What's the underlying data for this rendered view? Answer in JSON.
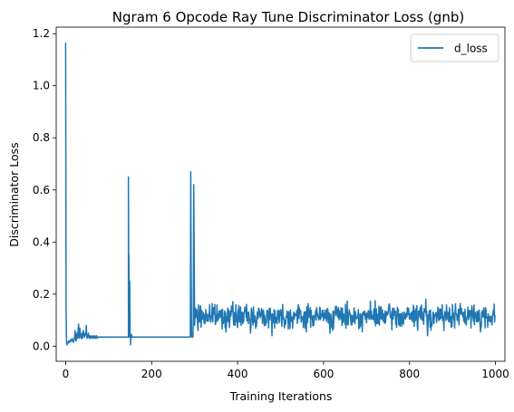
{
  "chart_data": {
    "type": "line",
    "title": "Ngram 6 Opcode Ray Tune Discriminator Loss (gnb)",
    "xlabel": "Training Iterations",
    "ylabel": "Discriminator Loss",
    "xlim": [
      -22,
      1022
    ],
    "ylim": [
      -0.058,
      1.225
    ],
    "xticks": [
      0,
      200,
      400,
      600,
      800,
      1000
    ],
    "xtick_labels": [
      "0",
      "200",
      "400",
      "600",
      "800",
      "1000"
    ],
    "yticks": [
      0.0,
      0.2,
      0.4,
      0.6,
      0.8,
      1.0,
      1.2
    ],
    "ytick_labels": [
      "0.0",
      "0.2",
      "0.4",
      "0.6",
      "0.8",
      "1.0",
      "1.2"
    ],
    "grid": false,
    "legend": "top-right",
    "series": [
      {
        "name": "d_loss",
        "color": "#1f77b4",
        "segments": [
          {
            "x_start": 0,
            "values": [
              1.165,
              0.15,
              0.02,
              0.005,
              0.01,
              0.015,
              0.012,
              0.02,
              0.018,
              0.015,
              0.02,
              0.025,
              0.022,
              0.018,
              0.02,
              0.03,
              0.025,
              0.02,
              0.015,
              0.02,
              0.025,
              0.04,
              0.06,
              0.03,
              0.02,
              0.03,
              0.05,
              0.03,
              0.04,
              0.06,
              0.085,
              0.03,
              0.04,
              0.07,
              0.05,
              0.035,
              0.03,
              0.04,
              0.05,
              0.03,
              0.04,
              0.06,
              0.05,
              0.04,
              0.035,
              0.04,
              0.05,
              0.045,
              0.08,
              0.04,
              0.03,
              0.035,
              0.04,
              0.05,
              0.035,
              0.03,
              0.04,
              0.035,
              0.03,
              0.035,
              0.04,
              0.035,
              0.03,
              0.035,
              0.04,
              0.035,
              0.03,
              0.035,
              0.04,
              0.035,
              0.03,
              0.035,
              0.04,
              0.035,
              0.03,
              0.035,
              0.035,
              0.035,
              0.035,
              0.035,
              0.035,
              0.035,
              0.035,
              0.035,
              0.035,
              0.035,
              0.035,
              0.035,
              0.035,
              0.035,
              0.035,
              0.035,
              0.035,
              0.035,
              0.035,
              0.035,
              0.035,
              0.035,
              0.035,
              0.035,
              0.035,
              0.035,
              0.035,
              0.035,
              0.035,
              0.035,
              0.035,
              0.035,
              0.035,
              0.035,
              0.035,
              0.035,
              0.035,
              0.035,
              0.035,
              0.035,
              0.035,
              0.035,
              0.035,
              0.035,
              0.035,
              0.035,
              0.035,
              0.035,
              0.035,
              0.035,
              0.035,
              0.035,
              0.035,
              0.035,
              0.035,
              0.035,
              0.035,
              0.035,
              0.035,
              0.035,
              0.035,
              0.035,
              0.035,
              0.035,
              0.035,
              0.035,
              0.035,
              0.035,
              0.035,
              0.035,
              0.035,
              0.035,
              0.035,
              0.035,
              0.035,
              0.035,
              0.035,
              0.035,
              0.035,
              0.035,
              0.035,
              0.035
            ]
          },
          {
            "x_start": 146,
            "values": [
              0.65,
              0.35,
              0.05,
              0.25,
              0.04,
              0.005,
              0.03,
              0.045,
              0.04,
              0.035
            ]
          },
          {
            "x_start": 156,
            "constant_to": 290,
            "value": 0.035
          },
          {
            "x_start": 290,
            "values": [
              0.035,
              0.67,
              0.3,
              0.04,
              0.035,
              0.04,
              0.035,
              0.1,
              0.62,
              0.35,
              0.08
            ]
          }
        ],
        "noise_region": {
          "x_start": 301,
          "x_end": 1000,
          "mean": 0.1,
          "range": [
            0.05,
            0.175
          ],
          "notable_values": [
            {
              "x": 305,
              "y": 0.14
            },
            {
              "x": 308,
              "y": 0.06
            },
            {
              "x": 335,
              "y": 0.16
            },
            {
              "x": 430,
              "y": 0.05
            },
            {
              "x": 480,
              "y": 0.04
            },
            {
              "x": 560,
              "y": 0.055
            },
            {
              "x": 615,
              "y": 0.05
            },
            {
              "x": 690,
              "y": 0.055
            },
            {
              "x": 838,
              "y": 0.18
            },
            {
              "x": 842,
              "y": 0.04
            },
            {
              "x": 866,
              "y": 0.15
            },
            {
              "x": 880,
              "y": 0.06
            },
            {
              "x": 900,
              "y": 0.16
            },
            {
              "x": 965,
              "y": 0.055
            }
          ]
        }
      }
    ]
  }
}
